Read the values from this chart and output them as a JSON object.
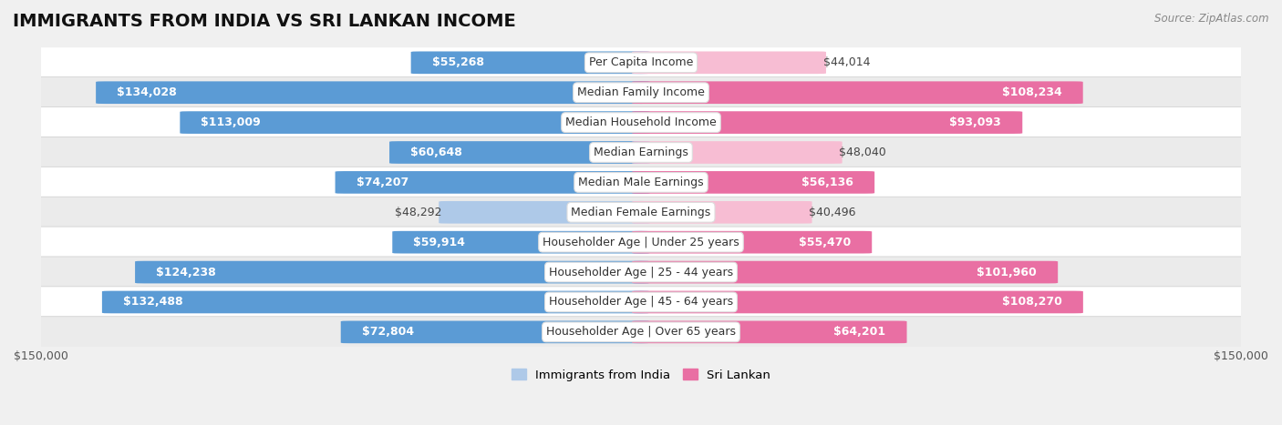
{
  "title": "IMMIGRANTS FROM INDIA VS SRI LANKAN INCOME",
  "source": "Source: ZipAtlas.com",
  "categories": [
    "Per Capita Income",
    "Median Family Income",
    "Median Household Income",
    "Median Earnings",
    "Median Male Earnings",
    "Median Female Earnings",
    "Householder Age | Under 25 years",
    "Householder Age | 25 - 44 years",
    "Householder Age | 45 - 64 years",
    "Householder Age | Over 65 years"
  ],
  "india_values": [
    55268,
    134028,
    113009,
    60648,
    74207,
    48292,
    59914,
    124238,
    132488,
    72804
  ],
  "srilanka_values": [
    44014,
    108234,
    93093,
    48040,
    56136,
    40496,
    55470,
    101960,
    108270,
    64201
  ],
  "india_labels": [
    "$55,268",
    "$134,028",
    "$113,009",
    "$60,648",
    "$74,207",
    "$48,292",
    "$59,914",
    "$124,238",
    "$132,488",
    "$72,804"
  ],
  "srilanka_labels": [
    "$44,014",
    "$108,234",
    "$93,093",
    "$48,040",
    "$56,136",
    "$40,496",
    "$55,470",
    "$101,960",
    "$108,270",
    "$64,201"
  ],
  "india_color_light": "#aec9e8",
  "india_color_dark": "#5b9bd5",
  "srilanka_color_light": "#f7bdd3",
  "srilanka_color_dark": "#e96fa3",
  "max_value": 150000,
  "background_color": "#f0f0f0",
  "row_colors": [
    "#ffffff",
    "#ebebeb"
  ],
  "bar_height": 0.72,
  "title_fontsize": 14,
  "label_fontsize": 9,
  "axis_label_fontsize": 9,
  "legend_fontsize": 9.5,
  "inside_threshold": 0.35
}
